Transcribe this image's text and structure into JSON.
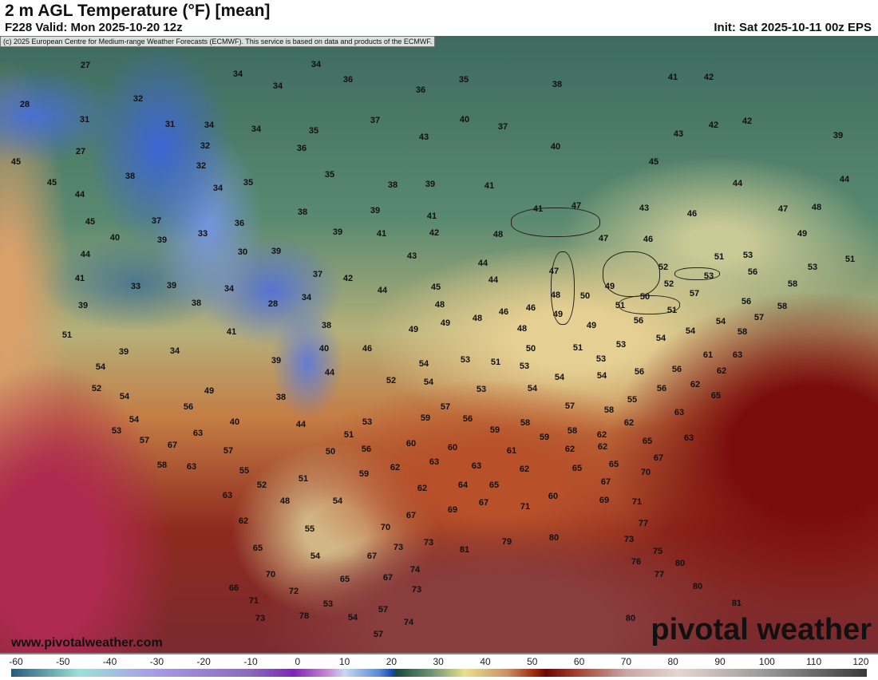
{
  "header": {
    "title": "2 m AGL Temperature (°F) [mean]",
    "valid": "F228 Valid: Mon 2025-10-20 12z",
    "init": "Init: Sat 2025-10-11 00z EPS"
  },
  "copyright": "(c) 2025 European Centre for Medium-range Weather Forecasts (ECMWF). This service is based on data and products of the ECMWF.",
  "site": "www.pivotalweather.com",
  "logo": "pivotal weather",
  "colorbar": {
    "unit": "°F",
    "ticks": [
      "-60",
      "-50",
      "-40",
      "-30",
      "-20",
      "-10",
      "0",
      "10",
      "20",
      "30",
      "40",
      "50",
      "60",
      "70",
      "80",
      "90",
      "100",
      "110",
      "120"
    ]
  },
  "map": {
    "labels": [
      "27",
      "34",
      "34",
      "36",
      "34",
      "35",
      "36",
      "38",
      "41",
      "42",
      "28",
      "32",
      "37",
      "40",
      "37",
      "42",
      "42",
      "39",
      "31",
      "31",
      "34",
      "34",
      "35",
      "43",
      "43",
      "40",
      "27",
      "36",
      "32",
      "45",
      "45",
      "32",
      "35",
      "38",
      "44",
      "44",
      "34",
      "35",
      "38",
      "39",
      "41",
      "44",
      "45",
      "45",
      "37",
      "39",
      "38",
      "41",
      "41",
      "47",
      "43",
      "46",
      "47",
      "48",
      "40",
      "39",
      "33",
      "36",
      "39",
      "41",
      "42",
      "48",
      "47",
      "46",
      "49",
      "44",
      "30",
      "39",
      "43",
      "44",
      "51",
      "53",
      "53",
      "51",
      "41",
      "33",
      "39",
      "34",
      "37",
      "42",
      "45",
      "44",
      "47",
      "52",
      "56",
      "53",
      "39",
      "38",
      "28",
      "34",
      "44",
      "48",
      "48",
      "50",
      "49",
      "52",
      "57",
      "50",
      "51",
      "56",
      "58",
      "58",
      "51",
      "41",
      "38",
      "49",
      "49",
      "48",
      "46",
      "46",
      "48",
      "49",
      "49",
      "51",
      "56",
      "54",
      "54",
      "57",
      "58",
      "39",
      "34",
      "40",
      "46",
      "53",
      "51",
      "50",
      "51",
      "53",
      "54",
      "61",
      "63",
      "54",
      "39",
      "44",
      "54",
      "53",
      "54",
      "53",
      "54",
      "56",
      "56",
      "62",
      "52",
      "52",
      "54",
      "53",
      "54",
      "56",
      "62",
      "65",
      "54",
      "49",
      "56",
      "38",
      "57",
      "57",
      "58",
      "55",
      "54",
      "40",
      "53",
      "59",
      "56",
      "58",
      "62",
      "63",
      "53",
      "63",
      "44",
      "51",
      "59",
      "59",
      "58",
      "62",
      "65",
      "63",
      "57",
      "67",
      "60",
      "60",
      "62",
      "62",
      "67",
      "57",
      "50",
      "56",
      "61",
      "63",
      "62",
      "65",
      "65",
      "70",
      "58",
      "63",
      "55",
      "62",
      "63",
      "67",
      "52",
      "51",
      "59",
      "62",
      "64",
      "65",
      "63",
      "48",
      "54",
      "67",
      "69",
      "71",
      "60",
      "69",
      "71",
      "62",
      "70",
      "67",
      "55",
      "77",
      "65",
      "54",
      "73",
      "73",
      "81",
      "79",
      "80",
      "73",
      "75",
      "76",
      "67",
      "70",
      "65",
      "67",
      "74",
      "77",
      "80",
      "66",
      "72",
      "73",
      "80",
      "71",
      "53",
      "57",
      "81",
      "73",
      "78",
      "54",
      "74",
      "80",
      "57"
    ]
  }
}
